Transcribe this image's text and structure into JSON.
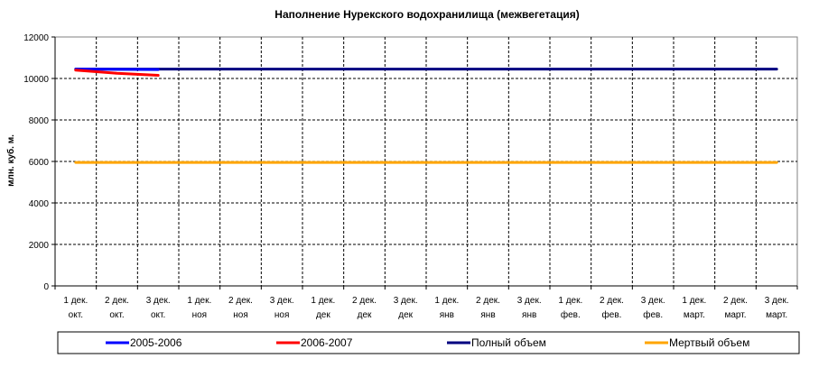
{
  "chart_data": {
    "type": "line",
    "title": "Наполнение Нурекского водохранилища (межвегетация)",
    "xlabel": "",
    "ylabel": "млн. куб. м.",
    "ylim": [
      0,
      12000
    ],
    "yticks": [
      0,
      2000,
      4000,
      6000,
      8000,
      10000,
      12000
    ],
    "grid": true,
    "legend_position": "bottom",
    "categories": [
      [
        "1 дек.",
        "окт."
      ],
      [
        "2 дек.",
        "окт."
      ],
      [
        "3 дек.",
        "окт."
      ],
      [
        "1 дек.",
        "ноя"
      ],
      [
        "2 дек.",
        "ноя"
      ],
      [
        "3 дек.",
        "ноя"
      ],
      [
        "1 дек.",
        "дек"
      ],
      [
        "2 дек.",
        "дек"
      ],
      [
        "3 дек.",
        "дек"
      ],
      [
        "1 дек.",
        "янв"
      ],
      [
        "2 дек.",
        "янв"
      ],
      [
        "3 дек.",
        "янв"
      ],
      [
        "1 дек.",
        "фев."
      ],
      [
        "2 дек.",
        "фев."
      ],
      [
        "3 дек.",
        "фев."
      ],
      [
        "1 дек.",
        "март."
      ],
      [
        "2 дек.",
        "март."
      ],
      [
        "3 дек.",
        "март."
      ]
    ],
    "series": [
      {
        "name": "2005-2006",
        "color": "#0000ff",
        "values": [
          10450,
          10440,
          10430,
          null,
          null,
          null,
          null,
          null,
          null,
          null,
          null,
          null,
          null,
          null,
          null,
          null,
          null,
          null
        ]
      },
      {
        "name": "2006-2007",
        "color": "#ff0000",
        "values": [
          10400,
          10250,
          10150,
          null,
          null,
          null,
          null,
          null,
          null,
          null,
          null,
          null,
          null,
          null,
          null,
          null,
          null,
          null
        ]
      },
      {
        "name": "Полный объем",
        "color": "#000080",
        "values": [
          10450,
          10450,
          10450,
          10450,
          10450,
          10450,
          10450,
          10450,
          10450,
          10450,
          10450,
          10450,
          10450,
          10450,
          10450,
          10450,
          10450,
          10450
        ]
      },
      {
        "name": "Мертвый объем",
        "color": "#ffa500",
        "values": [
          5950,
          5950,
          5950,
          5950,
          5950,
          5950,
          5950,
          5950,
          5950,
          5950,
          5950,
          5950,
          5950,
          5950,
          5950,
          5950,
          5950,
          5950
        ]
      }
    ]
  }
}
